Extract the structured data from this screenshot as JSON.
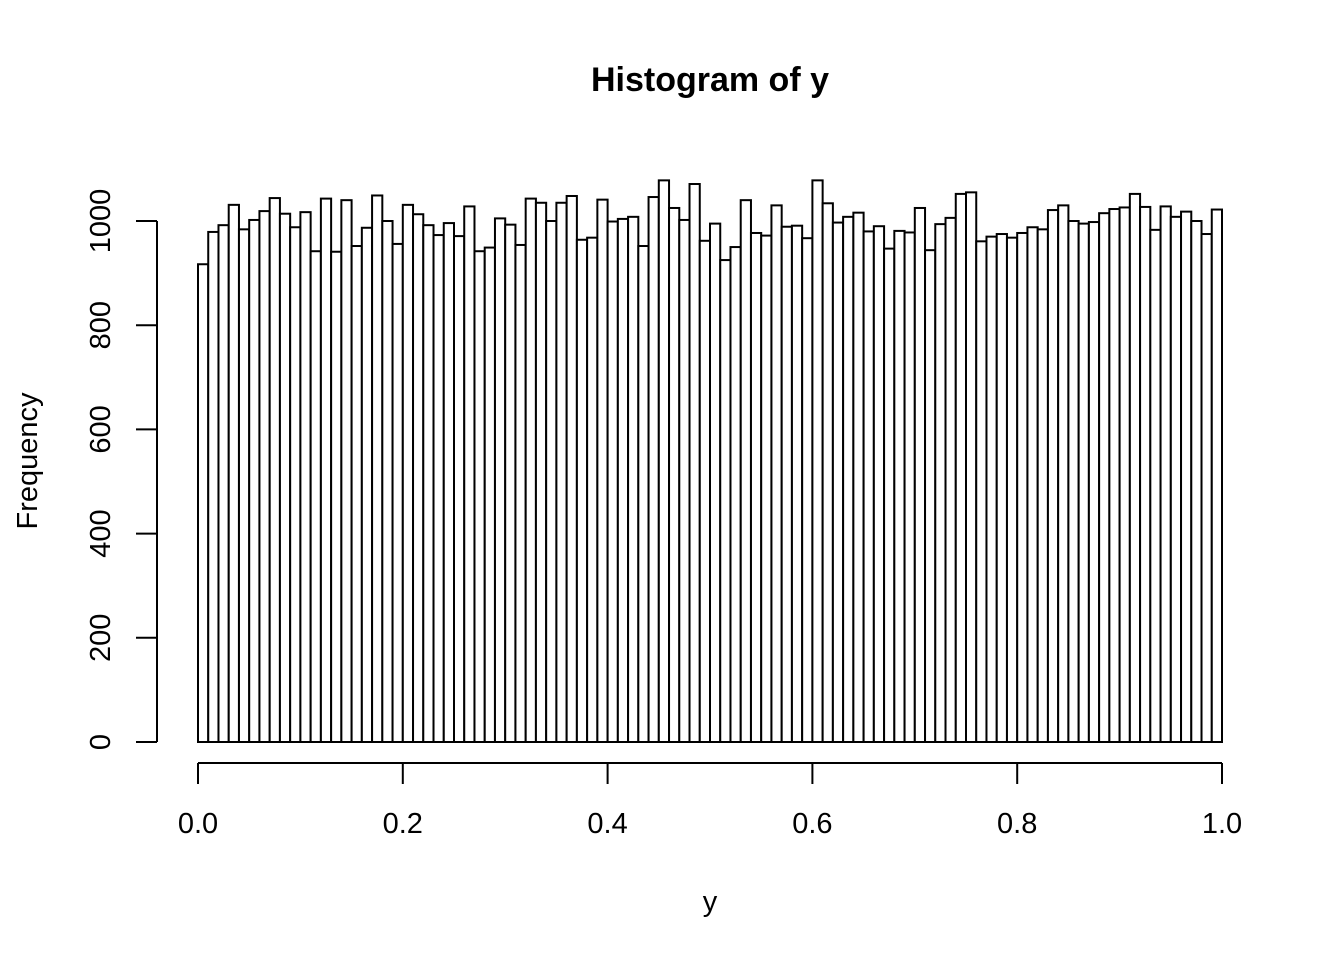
{
  "chart_data": {
    "type": "bar",
    "title": "Histogram of y",
    "xlabel": "y",
    "ylabel": "Frequency",
    "xlim": [
      0,
      1
    ],
    "ylim": [
      0,
      1080
    ],
    "bin_width": 0.01,
    "x_ticks": [
      "0.0",
      "0.2",
      "0.4",
      "0.6",
      "0.8",
      "1.0"
    ],
    "x_tick_values": [
      0,
      0.2,
      0.4,
      0.6,
      0.8,
      1.0
    ],
    "y_ticks": [
      "0",
      "200",
      "400",
      "600",
      "800",
      "1000"
    ],
    "y_tick_values": [
      0,
      200,
      400,
      600,
      800,
      1000
    ],
    "grid": false,
    "bar_fill": "#ffffff",
    "bar_stroke": "#000000",
    "values": [
      917,
      979,
      992,
      1031,
      984,
      1002,
      1019,
      1044,
      1014,
      988,
      1017,
      942,
      1043,
      941,
      1040,
      952,
      987,
      1049,
      1000,
      956,
      1031,
      1013,
      992,
      973,
      996,
      971,
      1028,
      942,
      949,
      1005,
      993,
      954,
      1043,
      1035,
      1000,
      1035,
      1048,
      964,
      968,
      1041,
      999,
      1004,
      1008,
      952,
      1046,
      1078,
      1025,
      1002,
      1071,
      962,
      995,
      925,
      950,
      1040,
      977,
      972,
      1030,
      989,
      991,
      967,
      1078,
      1034,
      997,
      1008,
      1016,
      980,
      990,
      947,
      981,
      978,
      1025,
      944,
      994,
      1006,
      1052,
      1055,
      961,
      970,
      975,
      968,
      977,
      988,
      984,
      1021,
      1030,
      1000,
      995,
      998,
      1015,
      1023,
      1026,
      1052,
      1027,
      983,
      1028,
      1008,
      1018,
      1000,
      975,
      1022
    ]
  }
}
